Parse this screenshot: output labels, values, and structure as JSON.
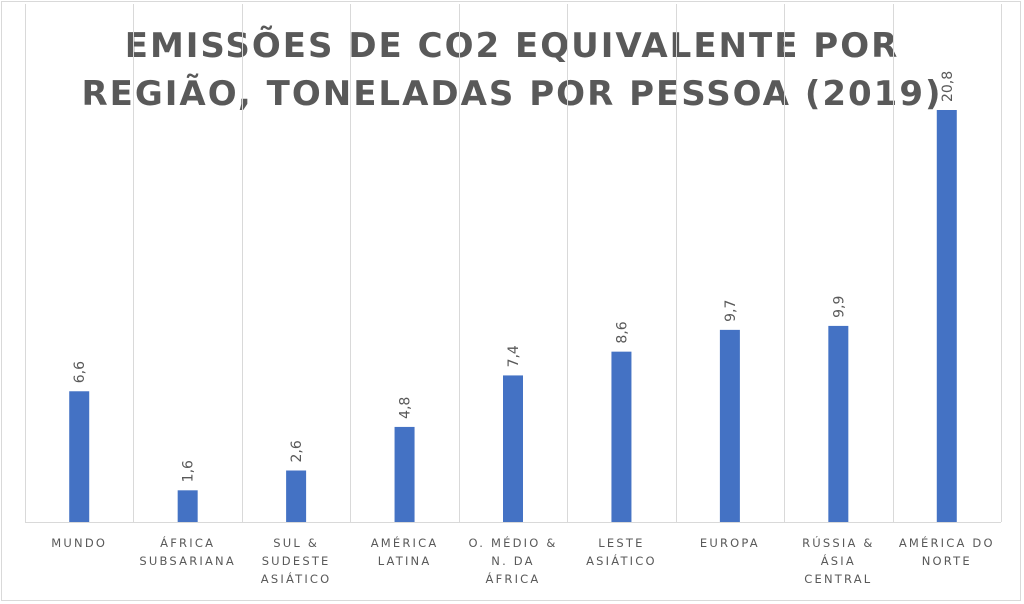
{
  "chart_data": {
    "type": "bar",
    "title_lines": [
      "EMISSÕES DE CO2 EQUIVALENTE POR",
      "REGIÃO, TONELADAS POR PESSOA (2019)"
    ],
    "categories": [
      [
        "MUNDO"
      ],
      [
        "ÁFRICA",
        "SUBSARIANA"
      ],
      [
        "SUL &",
        "SUDESTE",
        "ASIÁTICO"
      ],
      [
        "AMÉRICA",
        "LATINA"
      ],
      [
        "O. MÉDIO &",
        "N. DA",
        "ÁFRICA"
      ],
      [
        "LESTE",
        "ASIÁTICO"
      ],
      [
        "EUROPA"
      ],
      [
        "RÚSSIA &",
        "ÁSIA",
        "CENTRAL"
      ],
      [
        "AMÉRICA DO",
        "NORTE"
      ]
    ],
    "values": [
      6.6,
      1.6,
      2.6,
      4.8,
      7.4,
      8.6,
      9.7,
      9.9,
      20.8
    ],
    "data_labels": [
      "6,6",
      "1,6",
      "2,6",
      "4,8",
      "7,4",
      "8,6",
      "9,7",
      "9,9",
      "20,8"
    ],
    "ylim": [
      0,
      21
    ],
    "grid": "vertical",
    "colors": {
      "bar": "#4472c4",
      "text": "#595959",
      "grid": "#d9d9d9"
    }
  }
}
